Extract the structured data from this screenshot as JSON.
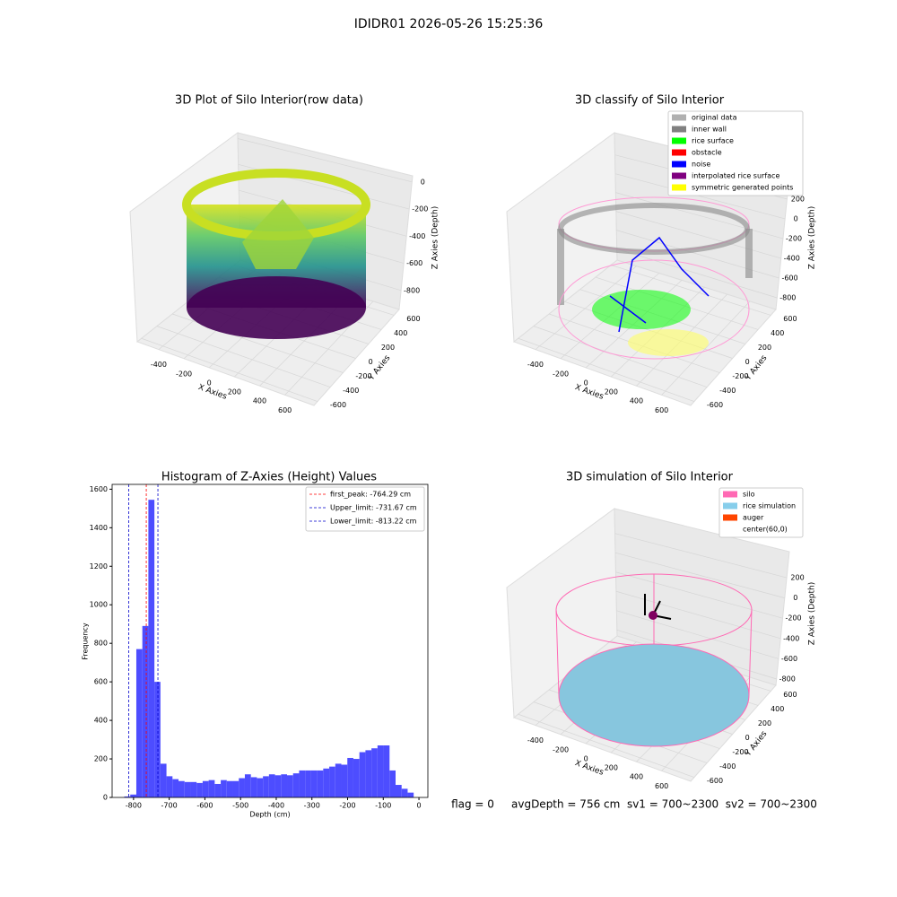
{
  "title": "IDIDR01 2026-05-26 15:25:36",
  "footer": "flag = 0     avgDepth = 756 cm  sv1 = 700~2300  sv2 = 700~2300",
  "chart_data": [
    {
      "type": "scatter3d",
      "title": "3D Plot of Silo Interior(row data)",
      "xlabel": "X Axies",
      "ylabel": "Y Axies",
      "zlabel": "Z Axies (Depth)",
      "xlim": [
        -570,
        830
      ],
      "xticks": [
        -400,
        -200,
        0,
        200,
        400,
        600
      ],
      "ylim": [
        -655,
        680
      ],
      "yticks": [
        -600,
        -400,
        -200,
        0,
        200,
        400,
        600
      ],
      "zlim": [
        -940,
        45
      ],
      "zticks": [
        -800,
        -600,
        -400,
        -200,
        0
      ]
    },
    {
      "type": "scatter3d",
      "title": "3D classify of Silo Interior",
      "zlabel": "Z Axies (Depth)",
      "xlabel": "X Axies",
      "ylabel": "Y Axies",
      "xlim": [
        -570,
        830
      ],
      "xticks": [
        -400,
        -200,
        0,
        200,
        400,
        600
      ],
      "ylim": [
        -655,
        680
      ],
      "yticks": [
        -600,
        -400,
        -200,
        0,
        200,
        400,
        600
      ],
      "zlim": [
        -918,
        435
      ],
      "zticks": [
        -800,
        -600,
        -400,
        -200,
        0,
        200
      ],
      "legend": [
        {
          "name": "original data",
          "color": "#b0b0b0"
        },
        {
          "name": "inner wall",
          "color": "#808080"
        },
        {
          "name": "rice surface",
          "color": "#00ff00"
        },
        {
          "name": "obstacle",
          "color": "#ff0000"
        },
        {
          "name": "noise",
          "color": "#0000ff"
        },
        {
          "name": "interpolated rice surface",
          "color": "#800080"
        },
        {
          "name": "symmetric generated points",
          "color": "#ffff00"
        }
      ]
    },
    {
      "type": "histogram",
      "title": "Histogram of Z-Axies (Height) Values",
      "xlabel": "Depth (cm)",
      "ylabel": "Frequency",
      "color": "#4d4dff",
      "bins": [
        -826.0,
        -809.1,
        -792.2,
        -775.3,
        -758.4,
        -741.5,
        -724.6,
        -707.7,
        -690.8,
        -673.9,
        -657.0,
        -640.1,
        -623.2,
        -606.3,
        -589.4,
        -572.5,
        -555.6,
        -538.7,
        -521.8,
        -504.9,
        -488.0,
        -471.1,
        -454.2,
        -437.3,
        -420.4,
        -403.5,
        -386.6,
        -369.7,
        -352.8,
        -335.9,
        -319.0,
        -302.1,
        -285.2,
        -268.3,
        -251.4,
        -234.5,
        -217.6,
        -200.7,
        -183.8,
        -166.9,
        -150.0,
        -133.1,
        -116.2,
        -99.3,
        -82.4,
        -65.5,
        -48.6,
        -31.7,
        -14.8
      ],
      "values": [
        5,
        15,
        770,
        890,
        1545,
        600,
        175,
        110,
        95,
        85,
        80,
        80,
        75,
        85,
        90,
        70,
        90,
        85,
        85,
        100,
        120,
        105,
        100,
        110,
        120,
        115,
        120,
        115,
        125,
        140,
        140,
        140,
        140,
        150,
        160,
        175,
        170,
        205,
        200,
        235,
        245,
        255,
        270,
        270,
        140,
        65,
        45,
        25
      ],
      "xlim": [
        -860,
        25
      ],
      "xticks": [
        -800,
        -700,
        -600,
        -500,
        -400,
        -300,
        -200,
        -100,
        0
      ],
      "ylim": [
        0,
        1625
      ],
      "yticks": [
        0,
        200,
        400,
        600,
        800,
        1000,
        1200,
        1400,
        1600
      ],
      "vlines": [
        {
          "value": -764.29,
          "label": "first_peak: -764.29 cm",
          "color": "#ff0000"
        },
        {
          "value": -731.67,
          "label": "Upper_limit: -731.67 cm",
          "color": "#0000cc"
        },
        {
          "value": -813.22,
          "label": "Lower_limit: -813.22 cm",
          "color": "#0000cc"
        }
      ]
    },
    {
      "type": "surface3d",
      "title": "3D simulation of Silo Interior",
      "zlabel": "Z Axies (Depth)",
      "xlabel": "X Axies",
      "ylabel": "Y Axies",
      "xlim": [
        -570,
        830
      ],
      "xticks": [
        -400,
        -200,
        0,
        200,
        400,
        600
      ],
      "ylim": [
        -655,
        680
      ],
      "yticks": [
        -600,
        -400,
        -200,
        0,
        200,
        400,
        600
      ],
      "zlim": [
        -862,
        457
      ],
      "zticks": [
        -800,
        -600,
        -400,
        -200,
        0,
        200
      ],
      "legend": [
        {
          "name": "silo",
          "color": "#ff69b4"
        },
        {
          "name": "rice simulation",
          "color": "#87ceeb"
        },
        {
          "name": "auger",
          "color": "#ff4500"
        },
        {
          "name": "center(60,0)",
          "color": "#ffffff"
        }
      ]
    }
  ]
}
